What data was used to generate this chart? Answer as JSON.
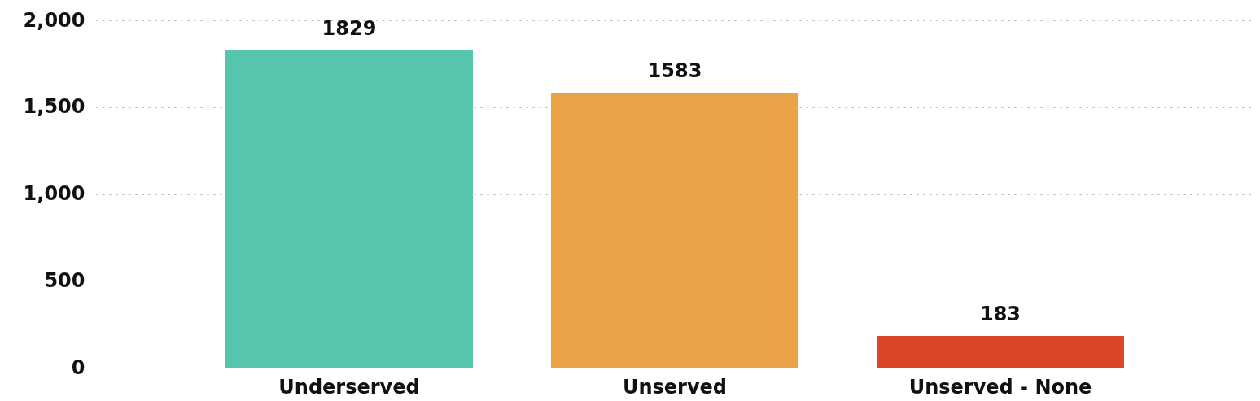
{
  "chart_data": {
    "type": "bar",
    "categories": [
      "Underserved",
      "Unserved",
      "Unserved - None"
    ],
    "values": [
      1829,
      1583,
      183
    ],
    "colors": [
      "#57c5ad",
      "#eba348",
      "#db4627"
    ],
    "ylim": [
      0,
      2000
    ],
    "yticks": [
      {
        "value": 0,
        "label": "0"
      },
      {
        "value": 500,
        "label": "500"
      },
      {
        "value": 1000,
        "label": "1,000"
      },
      {
        "value": 1500,
        "label": "1,500"
      },
      {
        "value": 2000,
        "label": "2,000"
      }
    ],
    "grid": "y",
    "data_labels": true
  }
}
